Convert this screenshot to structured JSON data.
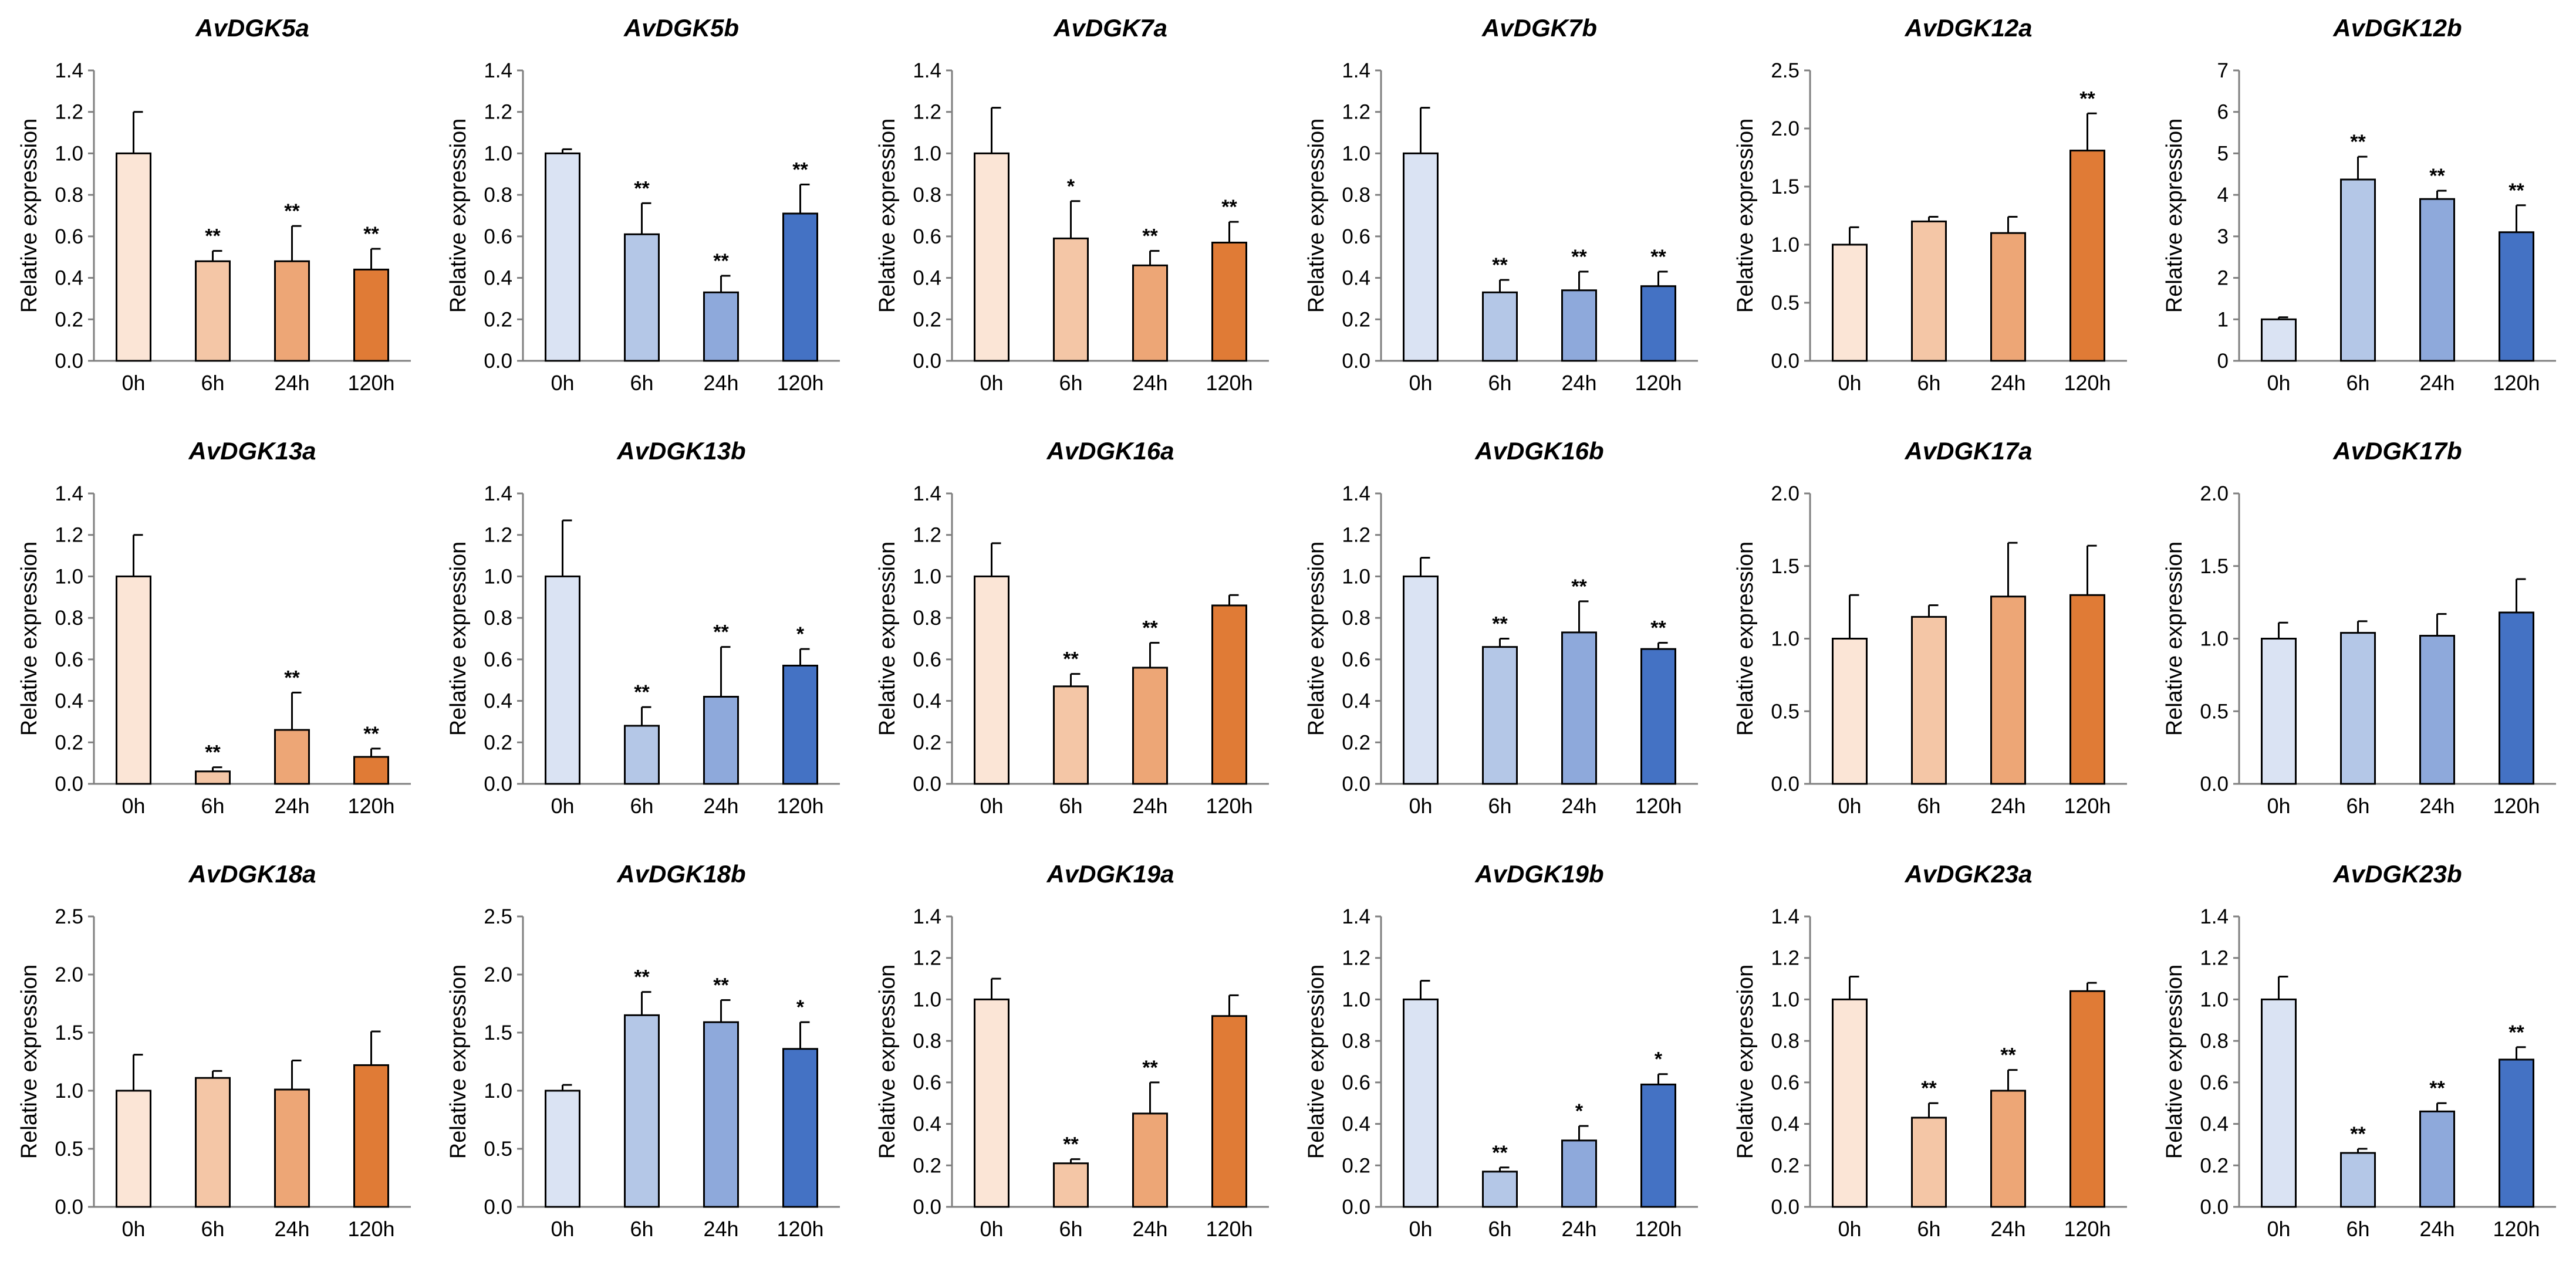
{
  "figure": {
    "description_categories": [
      "0h",
      "6h",
      "24h",
      "120h"
    ]
  },
  "palettes": {
    "orange": [
      "#FBE5D6",
      "#F4C6A6",
      "#EDA676",
      "#E07B36"
    ],
    "blue": [
      "#DAE3F3",
      "#B4C7E7",
      "#8EA9DB",
      "#4472C4"
    ],
    "bar_stroke": "#000000"
  },
  "chart_data": [
    {
      "type": "bar",
      "title": "AvDGK5a",
      "ylabel": "Relative expression",
      "xlabel": "",
      "categories": [
        "0h",
        "6h",
        "24h",
        "120h"
      ],
      "values": [
        1.0,
        0.48,
        0.48,
        0.44
      ],
      "errors": [
        0.2,
        0.05,
        0.17,
        0.1
      ],
      "significance": [
        "",
        "**",
        "**",
        "**"
      ],
      "ylim": [
        0,
        1.4
      ],
      "yticks": [
        "0.0",
        "0.2",
        "0.4",
        "0.6",
        "0.8",
        "1.0",
        "1.2",
        "1.4"
      ],
      "palette": "orange"
    },
    {
      "type": "bar",
      "title": "AvDGK5b",
      "ylabel": "Relative expression",
      "xlabel": "",
      "categories": [
        "0h",
        "6h",
        "24h",
        "120h"
      ],
      "values": [
        1.0,
        0.61,
        0.33,
        0.71
      ],
      "errors": [
        0.02,
        0.15,
        0.08,
        0.14
      ],
      "significance": [
        "",
        "**",
        "**",
        "**"
      ],
      "ylim": [
        0,
        1.4
      ],
      "yticks": [
        "0.0",
        "0.2",
        "0.4",
        "0.6",
        "0.8",
        "1.0",
        "1.2",
        "1.4"
      ],
      "palette": "blue"
    },
    {
      "type": "bar",
      "title": "AvDGK7a",
      "ylabel": "Relative expression",
      "xlabel": "",
      "categories": [
        "0h",
        "6h",
        "24h",
        "120h"
      ],
      "values": [
        1.0,
        0.59,
        0.46,
        0.57
      ],
      "errors": [
        0.22,
        0.18,
        0.07,
        0.1
      ],
      "significance": [
        "",
        "*",
        "**",
        "**"
      ],
      "ylim": [
        0,
        1.4
      ],
      "yticks": [
        "0.0",
        "0.2",
        "0.4",
        "0.6",
        "0.8",
        "1.0",
        "1.2",
        "1.4"
      ],
      "palette": "orange"
    },
    {
      "type": "bar",
      "title": "AvDGK7b",
      "ylabel": "Relative expression",
      "xlabel": "",
      "categories": [
        "0h",
        "6h",
        "24h",
        "120h"
      ],
      "values": [
        1.0,
        0.33,
        0.34,
        0.36
      ],
      "errors": [
        0.22,
        0.06,
        0.09,
        0.07
      ],
      "significance": [
        "",
        "**",
        "**",
        "**"
      ],
      "ylim": [
        0,
        1.4
      ],
      "yticks": [
        "0.0",
        "0.2",
        "0.4",
        "0.6",
        "0.8",
        "1.0",
        "1.2",
        "1.4"
      ],
      "palette": "blue"
    },
    {
      "type": "bar",
      "title": "AvDGK12a",
      "ylabel": "Relative expression",
      "xlabel": "",
      "categories": [
        "0h",
        "6h",
        "24h",
        "120h"
      ],
      "values": [
        1.0,
        1.2,
        1.1,
        1.81
      ],
      "errors": [
        0.15,
        0.04,
        0.14,
        0.32
      ],
      "significance": [
        "",
        "",
        "",
        "**"
      ],
      "ylim": [
        0,
        2.5
      ],
      "yticks": [
        "0.0",
        "0.5",
        "1.0",
        "1.5",
        "2.0",
        "2.5"
      ],
      "palette": "orange"
    },
    {
      "type": "bar",
      "title": "AvDGK12b",
      "ylabel": "Relative expression",
      "xlabel": "",
      "categories": [
        "0h",
        "6h",
        "24h",
        "120h"
      ],
      "values": [
        1.0,
        4.37,
        3.9,
        3.1
      ],
      "errors": [
        0.05,
        0.55,
        0.2,
        0.65
      ],
      "significance": [
        "",
        "**",
        "**",
        "**"
      ],
      "ylim": [
        0,
        7
      ],
      "yticks": [
        "0",
        "1",
        "2",
        "3",
        "4",
        "5",
        "6",
        "7"
      ],
      "palette": "blue"
    },
    {
      "type": "bar",
      "title": "AvDGK13a",
      "ylabel": "Relative expression",
      "xlabel": "",
      "categories": [
        "0h",
        "6h",
        "24h",
        "120h"
      ],
      "values": [
        1.0,
        0.06,
        0.26,
        0.13
      ],
      "errors": [
        0.2,
        0.02,
        0.18,
        0.04
      ],
      "significance": [
        "",
        "**",
        "**",
        "**"
      ],
      "ylim": [
        0,
        1.4
      ],
      "yticks": [
        "0.0",
        "0.2",
        "0.4",
        "0.6",
        "0.8",
        "1.0",
        "1.2",
        "1.4"
      ],
      "palette": "orange"
    },
    {
      "type": "bar",
      "title": "AvDGK13b",
      "ylabel": "Relative expression",
      "xlabel": "",
      "categories": [
        "0h",
        "6h",
        "24h",
        "120h"
      ],
      "values": [
        1.0,
        0.28,
        0.42,
        0.57
      ],
      "errors": [
        0.27,
        0.09,
        0.24,
        0.08
      ],
      "significance": [
        "",
        "**",
        "**",
        "*"
      ],
      "ylim": [
        0,
        1.4
      ],
      "yticks": [
        "0.0",
        "0.2",
        "0.4",
        "0.6",
        "0.8",
        "1.0",
        "1.2",
        "1.4"
      ],
      "palette": "blue"
    },
    {
      "type": "bar",
      "title": "AvDGK16a",
      "ylabel": "Relative expression",
      "xlabel": "",
      "categories": [
        "0h",
        "6h",
        "24h",
        "120h"
      ],
      "values": [
        1.0,
        0.47,
        0.56,
        0.86
      ],
      "errors": [
        0.16,
        0.06,
        0.12,
        0.05
      ],
      "significance": [
        "",
        "**",
        "**",
        ""
      ],
      "ylim": [
        0,
        1.4
      ],
      "yticks": [
        "0.0",
        "0.2",
        "0.4",
        "0.6",
        "0.8",
        "1.0",
        "1.2",
        "1.4"
      ],
      "palette": "orange"
    },
    {
      "type": "bar",
      "title": "AvDGK16b",
      "ylabel": "Relative expression",
      "xlabel": "",
      "categories": [
        "0h",
        "6h",
        "24h",
        "120h"
      ],
      "values": [
        1.0,
        0.66,
        0.73,
        0.65
      ],
      "errors": [
        0.09,
        0.04,
        0.15,
        0.03
      ],
      "significance": [
        "",
        "**",
        "**",
        "**"
      ],
      "ylim": [
        0,
        1.4
      ],
      "yticks": [
        "0.0",
        "0.2",
        "0.4",
        "0.6",
        "0.8",
        "1.0",
        "1.2",
        "1.4"
      ],
      "palette": "blue"
    },
    {
      "type": "bar",
      "title": "AvDGK17a",
      "ylabel": "Relative expression",
      "xlabel": "",
      "categories": [
        "0h",
        "6h",
        "24h",
        "120h"
      ],
      "values": [
        1.0,
        1.15,
        1.29,
        1.3
      ],
      "errors": [
        0.3,
        0.08,
        0.37,
        0.34
      ],
      "significance": [
        "",
        "",
        "",
        ""
      ],
      "ylim": [
        0,
        2.0
      ],
      "yticks": [
        "0.0",
        "0.5",
        "1.0",
        "1.5",
        "2.0"
      ],
      "palette": "orange"
    },
    {
      "type": "bar",
      "title": "AvDGK17b",
      "ylabel": "Relative expression",
      "xlabel": "",
      "categories": [
        "0h",
        "6h",
        "24h",
        "120h"
      ],
      "values": [
        1.0,
        1.04,
        1.02,
        1.18
      ],
      "errors": [
        0.11,
        0.08,
        0.15,
        0.23
      ],
      "significance": [
        "",
        "",
        "",
        ""
      ],
      "ylim": [
        0,
        2.0
      ],
      "yticks": [
        "0.0",
        "0.5",
        "1.0",
        "1.5",
        "2.0"
      ],
      "palette": "blue"
    },
    {
      "type": "bar",
      "title": "AvDGK18a",
      "ylabel": "Relative expression",
      "xlabel": "",
      "categories": [
        "0h",
        "6h",
        "24h",
        "120h"
      ],
      "values": [
        1.0,
        1.11,
        1.01,
        1.22
      ],
      "errors": [
        0.31,
        0.06,
        0.25,
        0.29
      ],
      "significance": [
        "",
        "",
        "",
        ""
      ],
      "ylim": [
        0,
        2.5
      ],
      "yticks": [
        "0.0",
        "0.5",
        "1.0",
        "1.5",
        "2.0",
        "2.5"
      ],
      "palette": "orange"
    },
    {
      "type": "bar",
      "title": "AvDGK18b",
      "ylabel": "Relative expression",
      "xlabel": "",
      "categories": [
        "0h",
        "6h",
        "24h",
        "120h"
      ],
      "values": [
        1.0,
        1.65,
        1.59,
        1.36
      ],
      "errors": [
        0.05,
        0.2,
        0.19,
        0.23
      ],
      "significance": [
        "",
        "**",
        "**",
        "*"
      ],
      "ylim": [
        0,
        2.5
      ],
      "yticks": [
        "0.0",
        "0.5",
        "1.0",
        "1.5",
        "2.0",
        "2.5"
      ],
      "palette": "blue"
    },
    {
      "type": "bar",
      "title": "AvDGK19a",
      "ylabel": "Relative expression",
      "xlabel": "",
      "categories": [
        "0h",
        "6h",
        "24h",
        "120h"
      ],
      "values": [
        1.0,
        0.21,
        0.45,
        0.92
      ],
      "errors": [
        0.1,
        0.02,
        0.15,
        0.1
      ],
      "significance": [
        "",
        "**",
        "**",
        ""
      ],
      "ylim": [
        0,
        1.4
      ],
      "yticks": [
        "0.0",
        "0.2",
        "0.4",
        "0.6",
        "0.8",
        "1.0",
        "1.2",
        "1.4"
      ],
      "palette": "orange"
    },
    {
      "type": "bar",
      "title": "AvDGK19b",
      "ylabel": "Relative expression",
      "xlabel": "",
      "categories": [
        "0h",
        "6h",
        "24h",
        "120h"
      ],
      "values": [
        1.0,
        0.17,
        0.32,
        0.59
      ],
      "errors": [
        0.09,
        0.02,
        0.07,
        0.05
      ],
      "significance": [
        "",
        "**",
        "*",
        "*"
      ],
      "ylim": [
        0,
        1.4
      ],
      "yticks": [
        "0.0",
        "0.2",
        "0.4",
        "0.6",
        "0.8",
        "1.0",
        "1.2",
        "1.4"
      ],
      "palette": "blue"
    },
    {
      "type": "bar",
      "title": "AvDGK23a",
      "ylabel": "Relative expression",
      "xlabel": "",
      "categories": [
        "0h",
        "6h",
        "24h",
        "120h"
      ],
      "values": [
        1.0,
        0.43,
        0.56,
        1.04
      ],
      "errors": [
        0.11,
        0.07,
        0.1,
        0.04
      ],
      "significance": [
        "",
        "**",
        "**",
        ""
      ],
      "ylim": [
        0,
        1.4
      ],
      "yticks": [
        "0.0",
        "0.2",
        "0.4",
        "0.6",
        "0.8",
        "1.0",
        "1.2",
        "1.4"
      ],
      "palette": "orange"
    },
    {
      "type": "bar",
      "title": "AvDGK23b",
      "ylabel": "Relative expression",
      "xlabel": "",
      "categories": [
        "0h",
        "6h",
        "24h",
        "120h"
      ],
      "values": [
        1.0,
        0.26,
        0.46,
        0.71
      ],
      "errors": [
        0.11,
        0.02,
        0.04,
        0.06
      ],
      "significance": [
        "",
        "**",
        "**",
        "**"
      ],
      "ylim": [
        0,
        1.4
      ],
      "yticks": [
        "0.0",
        "0.2",
        "0.4",
        "0.6",
        "0.8",
        "1.0",
        "1.2",
        "1.4"
      ],
      "palette": "blue"
    }
  ]
}
